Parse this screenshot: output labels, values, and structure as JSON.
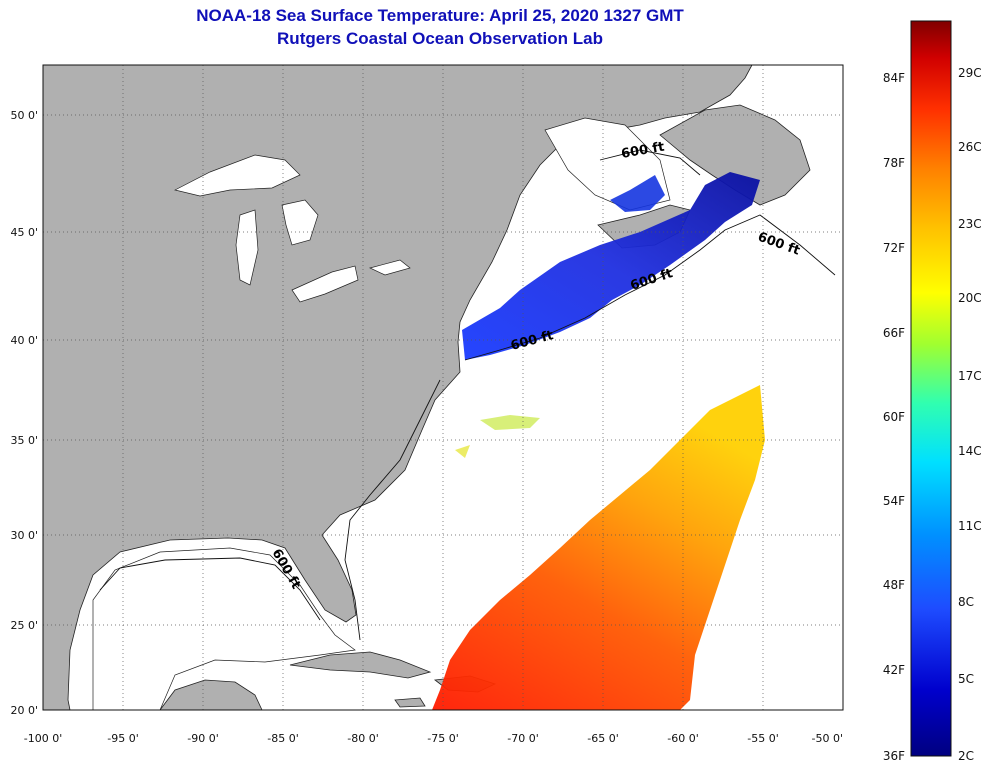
{
  "header": {
    "title": "NOAA-18 Sea Surface Temperature:  April 25, 2020 1327 GMT",
    "subtitle": "Rutgers Coastal Ocean Observation Lab"
  },
  "map": {
    "lon_range": [
      -100,
      -50
    ],
    "lat_range": [
      20,
      52.5
    ],
    "lon_ticks": [
      "-100 0'",
      "-95 0'",
      "-90 0'",
      "-85 0'",
      "-80 0'",
      "-75 0'",
      "-70 0'",
      "-65 0'",
      "-60 0'",
      "-55 0'",
      "-50 0'"
    ],
    "lat_ticks": [
      "50 0'",
      "45 0'",
      "40 0'",
      "35 0'",
      "30 0'",
      "25 0'",
      "20 0'"
    ],
    "isobath_labels": [
      "600 ft",
      "600 ft",
      "600 ft",
      "600 ft",
      "600 ft"
    ],
    "colors": {
      "land": "#b0b0b0",
      "no_data": "#ffffff",
      "grid": "#555555"
    }
  },
  "colorbar": {
    "fahrenheit_labels": [
      "84F",
      "78F",
      "72F",
      "66F",
      "60F",
      "54F",
      "48F",
      "42F",
      "36F"
    ],
    "celsius_labels": [
      "29C",
      "26C",
      "23C",
      "20C",
      "17C",
      "14C",
      "11C",
      "8C",
      "5C",
      "2C"
    ],
    "colors": [
      "#000080",
      "#0000cd",
      "#1e4cff",
      "#00a0ff",
      "#00e5ff",
      "#40ff80",
      "#c0ff00",
      "#ffff00",
      "#ffc000",
      "#ff8000",
      "#ff3000",
      "#d00000",
      "#800000"
    ]
  }
}
